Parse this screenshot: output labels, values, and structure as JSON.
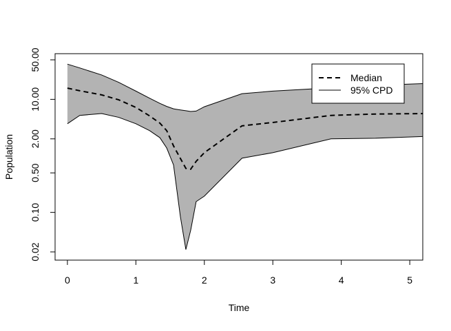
{
  "chart_data": {
    "type": "band-line",
    "x_label": "Time",
    "y_label": "Population",
    "log_y": true,
    "x": [
      0,
      0.18,
      0.5,
      0.75,
      1,
      1.2,
      1.35,
      1.45,
      1.55,
      1.65,
      1.73,
      1.8,
      1.88,
      2,
      2.55,
      3,
      3.85,
      4.5,
      5.19
    ],
    "series": [
      {
        "name": "Median",
        "color": "#000000",
        "dash": true,
        "values": [
          15.8,
          14.2,
          12,
          9.8,
          7.2,
          5.1,
          3.8,
          2.8,
          1.5,
          0.9,
          0.6,
          0.58,
          0.8,
          1.14,
          3.4,
          3.9,
          5.2,
          5.5,
          5.6
        ]
      },
      {
        "name": "95% CPD",
        "color": "#000000",
        "fill": "#b3b3b3",
        "upper": [
          42,
          36,
          27,
          20,
          14,
          10.5,
          8.5,
          7.5,
          6.8,
          6.5,
          6.3,
          6.1,
          6.2,
          7.4,
          12.6,
          14,
          16,
          17.7,
          19
        ],
        "lower": [
          3.7,
          5.2,
          5.6,
          4.8,
          3.7,
          2.8,
          2.1,
          1.38,
          0.69,
          0.084,
          0.022,
          0.048,
          0.155,
          0.194,
          0.91,
          1.14,
          2.0,
          2.05,
          2.2
        ]
      }
    ],
    "xlim": [
      -0.18,
      5.19
    ],
    "xticks": [
      0,
      1,
      2,
      3,
      4,
      5
    ],
    "ylim": [
      0.0143,
      64.3
    ],
    "yticks": [
      {
        "value": 0.02,
        "label": "0.02"
      },
      {
        "value": 0.1,
        "label": "0.10"
      },
      {
        "value": 0.5,
        "label": "0.50"
      },
      {
        "value": 2,
        "label": "2.00"
      },
      {
        "value": 10,
        "label": "10.00"
      },
      {
        "value": 50,
        "label": "50.00"
      }
    ],
    "legend": "top-right"
  }
}
